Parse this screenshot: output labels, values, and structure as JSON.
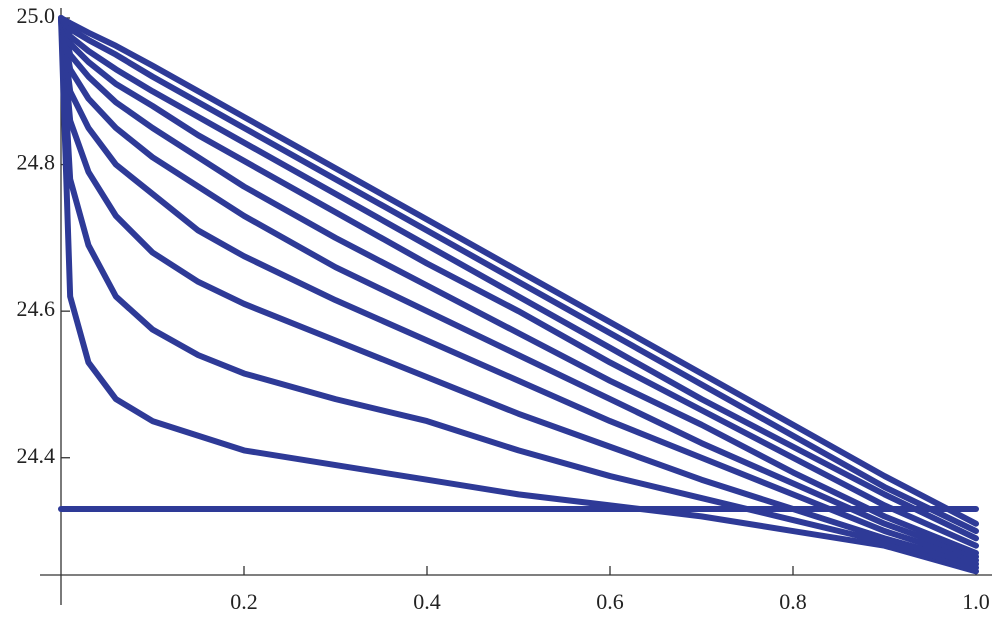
{
  "chart_data": {
    "type": "line",
    "x": [
      0,
      0.01,
      0.03,
      0.06,
      0.1,
      0.15,
      0.2,
      0.3,
      0.4,
      0.5,
      0.6,
      0.7,
      0.8,
      0.9,
      1.0
    ],
    "series": [
      {
        "color": "#2e3a97",
        "values": [
          24.33,
          24.33,
          24.33,
          24.33,
          24.33,
          24.33,
          24.33,
          24.33,
          24.33,
          24.33,
          24.33,
          24.33,
          24.33,
          24.33,
          24.33
        ]
      },
      {
        "color": "#2e3a97",
        "values": [
          25.0,
          24.62,
          24.53,
          24.48,
          24.45,
          24.43,
          24.41,
          24.39,
          24.37,
          24.35,
          24.335,
          24.32,
          24.3,
          24.28,
          24.245
        ]
      },
      {
        "color": "#2e3a97",
        "values": [
          25.0,
          24.78,
          24.69,
          24.62,
          24.575,
          24.54,
          24.515,
          24.48,
          24.45,
          24.41,
          24.375,
          24.345,
          24.315,
          24.285,
          24.25
        ]
      },
      {
        "color": "#2e3a97",
        "values": [
          25.0,
          24.86,
          24.79,
          24.73,
          24.68,
          24.64,
          24.61,
          24.56,
          24.51,
          24.46,
          24.415,
          24.37,
          24.33,
          24.29,
          24.255
        ]
      },
      {
        "color": "#2e3a97",
        "values": [
          25.0,
          24.9,
          24.85,
          24.8,
          24.76,
          24.71,
          24.675,
          24.615,
          24.56,
          24.505,
          24.45,
          24.4,
          24.35,
          24.3,
          24.26
        ]
      },
      {
        "color": "#2e3a97",
        "values": [
          25.0,
          24.93,
          24.89,
          24.85,
          24.81,
          24.77,
          24.73,
          24.66,
          24.6,
          24.54,
          24.48,
          24.42,
          24.365,
          24.31,
          24.265
        ]
      },
      {
        "color": "#2e3a97",
        "values": [
          25.0,
          24.95,
          24.92,
          24.885,
          24.85,
          24.81,
          24.77,
          24.7,
          24.635,
          24.57,
          24.505,
          24.445,
          24.38,
          24.32,
          24.27
        ]
      },
      {
        "color": "#2e3a97",
        "values": [
          25.0,
          24.965,
          24.94,
          24.91,
          24.88,
          24.84,
          24.805,
          24.735,
          24.665,
          24.6,
          24.53,
          24.465,
          24.4,
          24.335,
          24.28
        ]
      },
      {
        "color": "#2e3a97",
        "values": [
          25.0,
          24.975,
          24.955,
          24.93,
          24.9,
          24.865,
          24.83,
          24.76,
          24.69,
          24.62,
          24.55,
          24.48,
          24.415,
          24.35,
          24.29
        ]
      },
      {
        "color": "#2e3a97",
        "values": [
          25.0,
          24.985,
          24.97,
          24.95,
          24.92,
          24.885,
          24.85,
          24.78,
          24.71,
          24.64,
          24.57,
          24.5,
          24.43,
          24.36,
          24.3
        ]
      },
      {
        "color": "#2e3a97",
        "values": [
          25.0,
          24.993,
          24.98,
          24.962,
          24.935,
          24.9,
          24.865,
          24.795,
          24.725,
          24.655,
          24.585,
          24.515,
          24.445,
          24.375,
          24.31
        ]
      }
    ],
    "xlim": [
      0,
      1
    ],
    "ylim": [
      24.24,
      25.0
    ],
    "xticks": [
      0.2,
      0.4,
      0.6,
      0.8,
      {
        "value": 1,
        "label": "1.0"
      }
    ],
    "yticks": [
      24.4,
      24.6,
      24.8,
      {
        "value": 25,
        "label": "25.0"
      }
    ]
  }
}
